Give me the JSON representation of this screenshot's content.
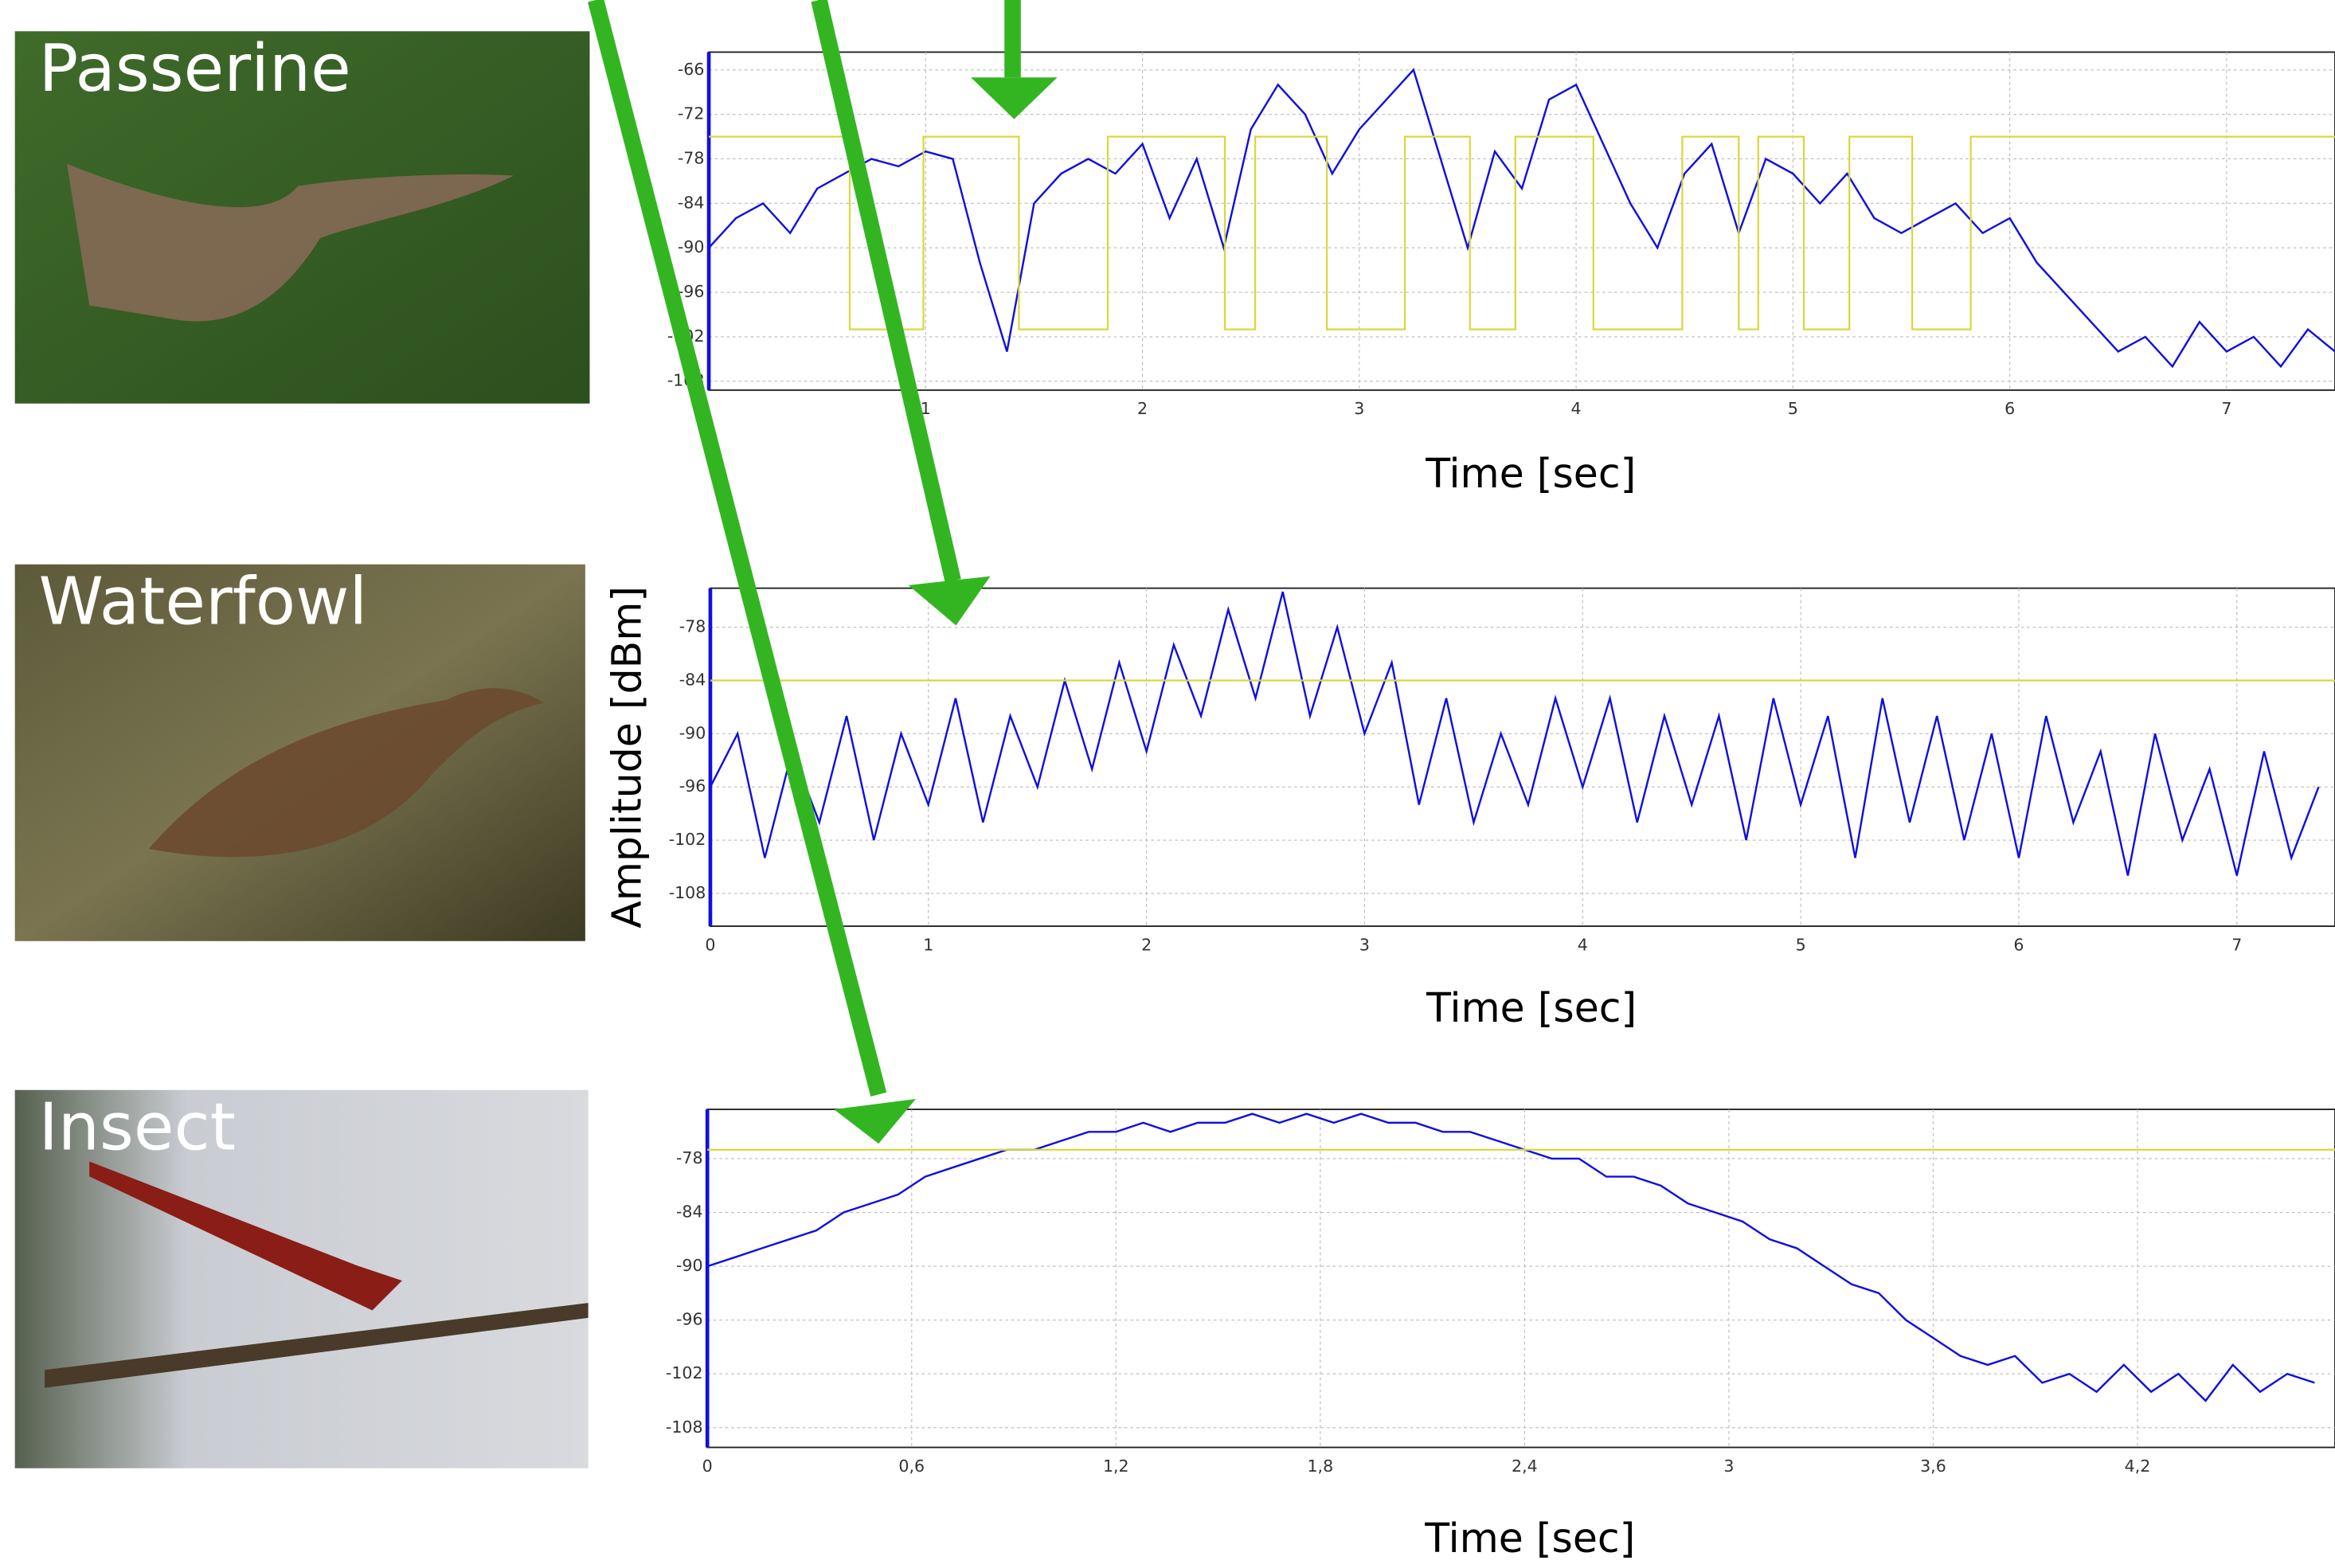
{
  "chart_data": [
    {
      "type": "line",
      "label": "Passerine",
      "xlabel": "Time [sec]",
      "xlim": [
        0,
        7.5
      ],
      "xticks": [
        1,
        2,
        3,
        4,
        5,
        6,
        7
      ],
      "ylim": [
        -109.2,
        -63.6
      ],
      "yticks": [
        -66,
        -72,
        -78,
        -84,
        -90,
        -96,
        -102,
        -108
      ],
      "grid": true,
      "series": [
        {
          "color": "#1010e0",
          "x": [
            0,
            0.125,
            0.25,
            0.375,
            0.5,
            0.625,
            0.75,
            0.875,
            1,
            1.125,
            1.25,
            1.375,
            1.5,
            1.625,
            1.75,
            1.875,
            2,
            2.125,
            2.25,
            2.375,
            2.5,
            2.625,
            2.75,
            2.875,
            3,
            3.125,
            3.25,
            3.375,
            3.5,
            3.625,
            3.75,
            3.875,
            4,
            4.125,
            4.25,
            4.375,
            4.5,
            4.625,
            4.75,
            4.875,
            5,
            5.125,
            5.25,
            5.375,
            5.5,
            5.625,
            5.75,
            5.875,
            6,
            6.125,
            6.25,
            6.375,
            6.5,
            6.625,
            6.75,
            6.875,
            7,
            7.125,
            7.25,
            7.375,
            7.5
          ],
          "values": [
            -90,
            -86,
            -84,
            -88,
            -82,
            -80,
            -78,
            -79,
            -77,
            -78,
            -92,
            -104,
            -84,
            -80,
            -78,
            -80,
            -76,
            -86,
            -78,
            -90,
            -74,
            -68,
            -72,
            -80,
            -74,
            -70,
            -66,
            -78,
            -90,
            -77,
            -82,
            -70,
            -68,
            -76,
            -84,
            -90,
            -80,
            -76,
            -88,
            -78,
            -80,
            -84,
            -80,
            -86,
            -88,
            -86,
            -84,
            -88,
            -86,
            -92,
            -96,
            -100,
            -104,
            -102,
            -106,
            -100,
            -104,
            -102,
            -106,
            -101,
            -104
          ]
        },
        {
          "color": "#d8d840",
          "x": [
            0,
            0.65,
            0.65,
            0.99,
            0.99,
            1.43,
            1.43,
            1.84,
            1.84,
            2.38,
            2.38,
            2.52,
            2.52,
            2.85,
            2.85,
            3.21,
            3.21,
            3.51,
            3.51,
            3.72,
            3.72,
            4.08,
            4.08,
            4.49,
            4.49,
            4.75,
            4.75,
            4.84,
            4.84,
            5.05,
            5.05,
            5.26,
            5.26,
            5.55,
            5.55,
            5.82,
            5.82,
            7.5
          ],
          "values": [
            -75,
            -75,
            -101,
            -101,
            -75,
            -75,
            -101,
            -101,
            -75,
            -75,
            -101,
            -101,
            -75,
            -75,
            -101,
            -101,
            -75,
            -75,
            -101,
            -101,
            -75,
            -75,
            -101,
            -101,
            -75,
            -75,
            -101,
            -101,
            -75,
            -75,
            -101,
            -101,
            -75,
            -75,
            -101,
            -101,
            -75,
            -75
          ]
        }
      ]
    },
    {
      "type": "line",
      "label": "Waterfowl",
      "xlabel": "Time [sec]",
      "ylabel": "Amplitude [dBm]",
      "xlim": [
        0,
        7.45
      ],
      "xticks": [
        0,
        1,
        2,
        3,
        4,
        5,
        6,
        7
      ],
      "ylim": [
        -111.7,
        -73.6
      ],
      "yticks": [
        -78,
        -84,
        -90,
        -96,
        -102,
        -108
      ],
      "grid": true,
      "series": [
        {
          "color": "#1010e0",
          "x": [
            0,
            0.125,
            0.25,
            0.375,
            0.5,
            0.625,
            0.75,
            0.875,
            1,
            1.125,
            1.25,
            1.375,
            1.5,
            1.625,
            1.75,
            1.875,
            2,
            2.125,
            2.25,
            2.375,
            2.5,
            2.625,
            2.75,
            2.875,
            3,
            3.125,
            3.25,
            3.375,
            3.5,
            3.625,
            3.75,
            3.875,
            4,
            4.125,
            4.25,
            4.375,
            4.5,
            4.625,
            4.75,
            4.875,
            5,
            5.125,
            5.25,
            5.375,
            5.5,
            5.625,
            5.75,
            5.875,
            6,
            6.125,
            6.25,
            6.375,
            6.5,
            6.625,
            6.75,
            6.875,
            7,
            7.125,
            7.25,
            7.375
          ],
          "values": [
            -96,
            -90,
            -104,
            -92,
            -100,
            -88,
            -102,
            -90,
            -98,
            -86,
            -100,
            -88,
            -96,
            -84,
            -94,
            -82,
            -92,
            -80,
            -88,
            -76,
            -86,
            -74,
            -88,
            -78,
            -90,
            -82,
            -98,
            -86,
            -100,
            -90,
            -98,
            -86,
            -96,
            -86,
            -100,
            -88,
            -98,
            -88,
            -102,
            -86,
            -98,
            -88,
            -104,
            -86,
            -100,
            -88,
            -102,
            -90,
            -104,
            -88,
            -100,
            -92,
            -106,
            -90,
            -102,
            -94,
            -106,
            -92,
            -104,
            -96
          ]
        },
        {
          "color": "#d8d840",
          "x": [
            0,
            7.45
          ],
          "values": [
            -84,
            -84
          ]
        }
      ]
    },
    {
      "type": "line",
      "label": "Insect",
      "xlabel": "Time [sec]",
      "xlim": [
        0,
        4.78
      ],
      "xticks": [
        0,
        {
          "value": 0.6,
          "label": "0,6"
        },
        {
          "value": 1.2,
          "label": "1,2"
        },
        {
          "value": 1.8,
          "label": "1,8"
        },
        {
          "value": 2.4,
          "label": "2,4"
        },
        3,
        {
          "value": 3.6,
          "label": "3,6"
        },
        {
          "value": 4.2,
          "label": "4,2"
        }
      ],
      "ylim": [
        -110.2,
        -72.5
      ],
      "yticks": [
        -78,
        -84,
        -90,
        -96,
        -102,
        -108
      ],
      "grid": true,
      "series": [
        {
          "color": "#1010e0",
          "x": [
            0,
            0.08,
            0.16,
            0.24,
            0.32,
            0.4,
            0.48,
            0.56,
            0.64,
            0.72,
            0.8,
            0.88,
            0.96,
            1.04,
            1.12,
            1.2,
            1.28,
            1.36,
            1.44,
            1.52,
            1.6,
            1.68,
            1.76,
            1.84,
            1.92,
            2,
            2.08,
            2.16,
            2.24,
            2.32,
            2.4,
            2.48,
            2.56,
            2.64,
            2.72,
            2.8,
            2.88,
            2.96,
            3.04,
            3.12,
            3.2,
            3.28,
            3.36,
            3.44,
            3.52,
            3.6,
            3.68,
            3.76,
            3.84,
            3.92,
            4,
            4.08,
            4.16,
            4.24,
            4.32,
            4.4,
            4.48,
            4.56,
            4.64,
            4.72
          ],
          "values": [
            -90,
            -89,
            -88,
            -87,
            -86,
            -84,
            -83,
            -82,
            -80,
            -79,
            -78,
            -77,
            -77,
            -76,
            -75,
            -75,
            -74,
            -75,
            -74,
            -74,
            -73,
            -74,
            -73,
            -74,
            -73,
            -74,
            -74,
            -75,
            -75,
            -76,
            -77,
            -78,
            -78,
            -80,
            -80,
            -81,
            -83,
            -84,
            -85,
            -87,
            -88,
            -90,
            -92,
            -93,
            -96,
            -98,
            -100,
            -101,
            -100,
            -103,
            -102,
            -104,
            -101,
            -104,
            -102,
            -105,
            -101,
            -104,
            -102,
            -103
          ]
        },
        {
          "color": "#d8d840",
          "x": [
            0,
            4.78
          ],
          "values": [
            -77,
            -77
          ]
        }
      ]
    }
  ]
}
